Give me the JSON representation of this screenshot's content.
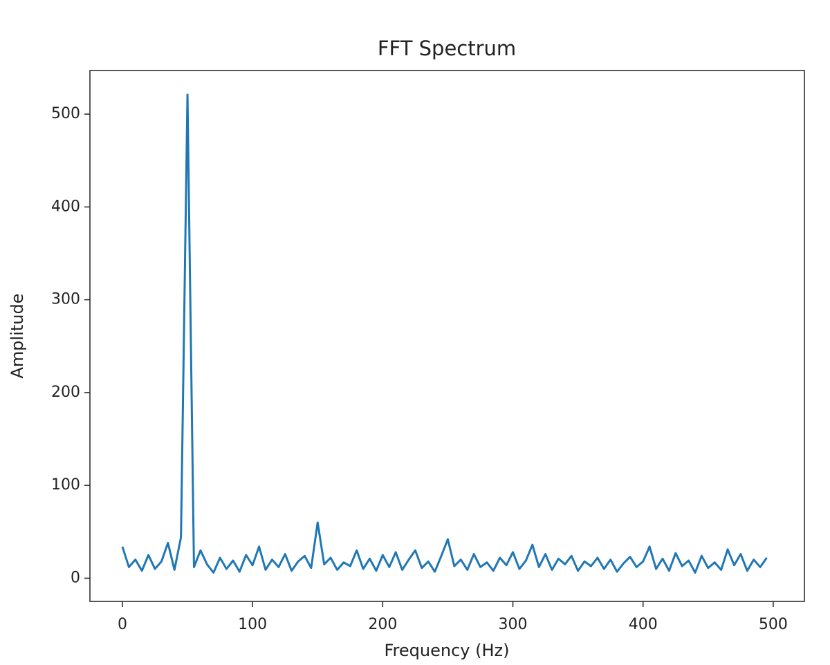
{
  "chart_data": {
    "type": "line",
    "title": "FFT Spectrum",
    "x_label": "Frequency (Hz)",
    "y_label": "Amplitude",
    "color": "#1f77b4",
    "x": [
      0,
      5,
      10,
      15,
      20,
      25,
      30,
      35,
      40,
      45,
      50,
      55,
      60,
      65,
      70,
      75,
      80,
      85,
      90,
      95,
      100,
      105,
      110,
      115,
      120,
      125,
      130,
      135,
      140,
      145,
      150,
      155,
      160,
      165,
      170,
      175,
      180,
      185,
      190,
      195,
      200,
      205,
      210,
      215,
      220,
      225,
      230,
      235,
      240,
      245,
      250,
      255,
      260,
      265,
      270,
      275,
      280,
      285,
      290,
      295,
      300,
      305,
      310,
      315,
      320,
      325,
      330,
      335,
      340,
      345,
      350,
      355,
      360,
      365,
      370,
      375,
      380,
      385,
      390,
      395,
      400,
      405,
      410,
      415,
      420,
      425,
      430,
      435,
      440,
      445,
      450,
      455,
      460,
      465,
      470,
      475,
      480,
      485,
      490,
      495
    ],
    "values": [
      34,
      12,
      20,
      8,
      25,
      10,
      18,
      38,
      9,
      44,
      521,
      12,
      30,
      15,
      6,
      22,
      10,
      19,
      7,
      25,
      14,
      34,
      9,
      20,
      12,
      26,
      8,
      18,
      24,
      11,
      60,
      15,
      22,
      9,
      17,
      13,
      30,
      10,
      21,
      8,
      25,
      12,
      28,
      9,
      20,
      30,
      11,
      18,
      7,
      24,
      42,
      13,
      20,
      9,
      26,
      12,
      17,
      8,
      22,
      14,
      28,
      10,
      19,
      36,
      12,
      26,
      9,
      21,
      15,
      24,
      8,
      18,
      13,
      22,
      10,
      20,
      7,
      16,
      23,
      12,
      18,
      34,
      10,
      21,
      8,
      27,
      13,
      19,
      6,
      24,
      11,
      17,
      9,
      31,
      14,
      26,
      8,
      20,
      12,
      22
    ],
    "xlim": [
      -24.95,
      523.95
    ],
    "ylim": [
      -25,
      547
    ],
    "xticks": [
      0,
      100,
      200,
      300,
      400,
      500
    ],
    "yticks": [
      0,
      100,
      200,
      300,
      400,
      500
    ]
  }
}
